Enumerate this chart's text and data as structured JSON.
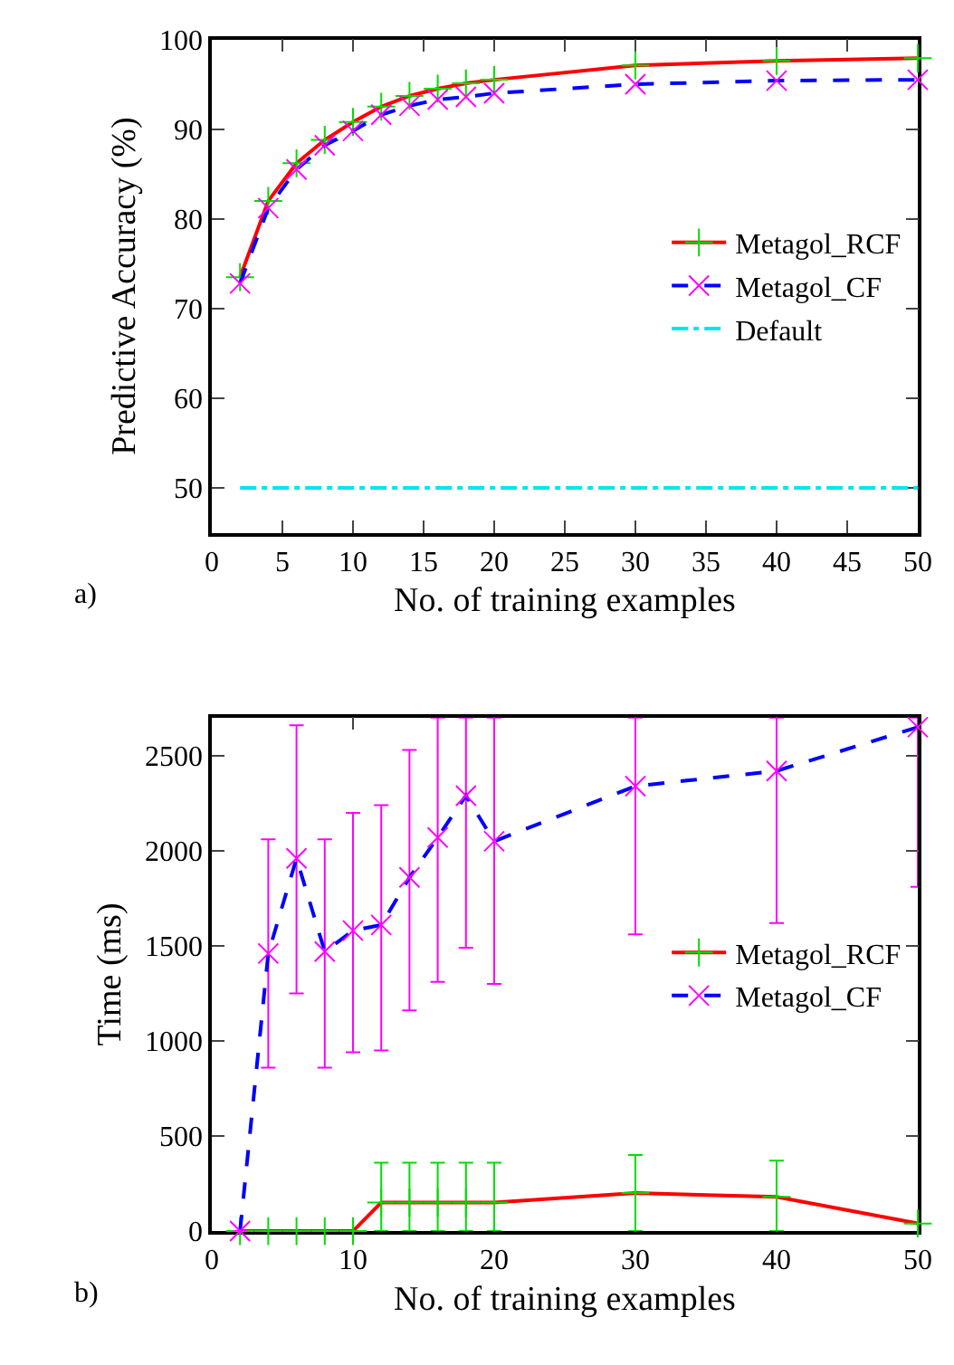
{
  "chart_data": [
    {
      "type": "line",
      "xlabel": "No. of training examples",
      "ylabel": "Predictive Accuracy (%)",
      "x": [
        2,
        4,
        6,
        8,
        10,
        12,
        14,
        16,
        18,
        20,
        30,
        40,
        50
      ],
      "xlim": [
        0,
        50
      ],
      "xticks": [
        0,
        5,
        10,
        15,
        20,
        25,
        30,
        35,
        40,
        45,
        50
      ],
      "ylim": [
        45,
        100
      ],
      "yticks": [
        50,
        60,
        70,
        80,
        90,
        100
      ],
      "legend": "right",
      "annotations": [
        "a)"
      ],
      "series": [
        {
          "name": "Metagol_RCF",
          "color": "#ff0000",
          "marker": "cross",
          "line_style": "solid",
          "colors": [
            "#00dd00",
            "#00dd00",
            "#00dd00",
            "#00dd00",
            "#00dd00",
            "#00dd00",
            "#00dd00",
            "#00dd00",
            "#00dd00",
            "#00dd00",
            "#00dd00",
            "#00dd00",
            "#00dd00"
          ],
          "values": [
            73.5,
            82,
            86.2,
            88.8,
            90.8,
            92.5,
            93.7,
            94.5,
            95.1,
            95.5,
            97.1,
            97.6,
            97.9
          ]
        },
        {
          "name": "Metagol_CF",
          "color": "#0000ff",
          "marker": "x",
          "line_style": "dashed",
          "colors": [
            "#ff00ff",
            "#ff00ff",
            "#ff00ff",
            "#ff00ff",
            "#ff00ff",
            "#ff00ff",
            "#ff00ff",
            "#ff00ff",
            "#ff00ff",
            "#ff00ff",
            "#ff00ff",
            "#ff00ff",
            "#ff00ff"
          ],
          "values": [
            72.8,
            81.2,
            85.5,
            88.2,
            89.8,
            91.6,
            92.6,
            93.3,
            93.6,
            94.0,
            95.0,
            95.4,
            95.5
          ]
        },
        {
          "name": "Default",
          "color": "#00e5ee",
          "marker": "none",
          "line_style": "dashdot",
          "x": [
            2,
            50
          ],
          "values": [
            50,
            50
          ]
        }
      ]
    },
    {
      "type": "line",
      "xlabel": "No. of training examples",
      "ylabel": "Time (ms)",
      "x": [
        2,
        4,
        6,
        8,
        10,
        12,
        14,
        16,
        18,
        20,
        30,
        40,
        50
      ],
      "xlim": [
        0,
        50
      ],
      "xticks": [
        0,
        10,
        20,
        30,
        40,
        50
      ],
      "ylim": [
        0,
        2700
      ],
      "yticks": [
        0,
        500,
        1000,
        1500,
        2000,
        2500
      ],
      "legend": "right",
      "annotations": [
        "b)"
      ],
      "series": [
        {
          "name": "Metagol_RCF",
          "color": "#ff0000",
          "marker": "cross",
          "line_style": "solid",
          "colors": [
            "#00dd00",
            "#00dd00",
            "#00dd00",
            "#00dd00",
            "#00dd00",
            "#00dd00",
            "#00dd00",
            "#00dd00",
            "#00dd00",
            "#00dd00",
            "#00dd00",
            "#00dd00",
            "#00dd00"
          ],
          "values": [
            0,
            0,
            0,
            0,
            0,
            150,
            150,
            150,
            150,
            150,
            200,
            180,
            40
          ],
          "errors": [
            null,
            null,
            null,
            null,
            null,
            [
              0,
              360
            ],
            [
              0,
              360
            ],
            [
              0,
              360
            ],
            [
              0,
              360
            ],
            [
              0,
              360
            ],
            [
              0,
              400
            ],
            [
              0,
              370
            ],
            null
          ]
        },
        {
          "name": "Metagol_CF",
          "color": "#0000ff",
          "marker": "x",
          "line_style": "dashed",
          "colors": [
            "#ff00ff",
            "#ff00ff",
            "#ff00ff",
            "#ff00ff",
            "#ff00ff",
            "#ff00ff",
            "#ff00ff",
            "#ff00ff",
            "#ff00ff",
            "#ff00ff",
            "#ff00ff",
            "#ff00ff",
            "#ff00ff"
          ],
          "values": [
            0,
            1460,
            1960,
            1470,
            1580,
            1610,
            1860,
            2070,
            2290,
            2050,
            2340,
            2420,
            2650
          ],
          "errors": [
            null,
            [
              860,
              2060
            ],
            [
              1250,
              2660
            ],
            [
              860,
              2060
            ],
            [
              940,
              2200
            ],
            [
              950,
              2240
            ],
            [
              1160,
              2530
            ],
            [
              1310,
              2700
            ],
            [
              1490,
              2700
            ],
            [
              1300,
              2700
            ],
            [
              1560,
              2700
            ],
            [
              1620,
              2700
            ],
            [
              1810,
              2700
            ]
          ]
        }
      ]
    }
  ]
}
